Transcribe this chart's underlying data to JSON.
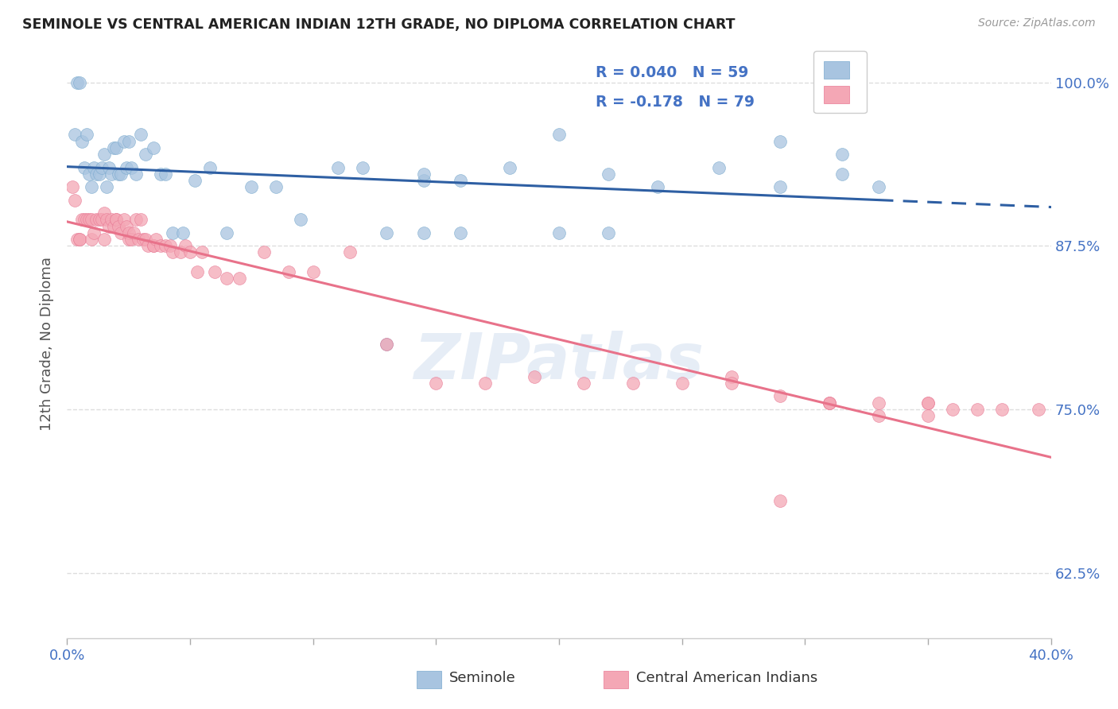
{
  "title": "SEMINOLE VS CENTRAL AMERICAN INDIAN 12TH GRADE, NO DIPLOMA CORRELATION CHART",
  "source": "Source: ZipAtlas.com",
  "ylabel": "12th Grade, No Diploma",
  "xlim": [
    0.0,
    0.4
  ],
  "ylim": [
    0.575,
    1.025
  ],
  "ytick_positions": [
    0.625,
    0.75,
    0.875,
    1.0
  ],
  "ytick_labels": [
    "62.5%",
    "75.0%",
    "87.5%",
    "100.0%"
  ],
  "xtick_positions": [
    0.0,
    0.05,
    0.1,
    0.15,
    0.2,
    0.25,
    0.3,
    0.35,
    0.4
  ],
  "xtick_labels": [
    "0.0%",
    "",
    "",
    "",
    "",
    "",
    "",
    "",
    "40.0%"
  ],
  "seminole_R": 0.04,
  "seminole_N": 59,
  "central_R": -0.178,
  "central_N": 79,
  "legend_label1": "Seminole",
  "legend_label2": "Central American Indians",
  "blue_color": "#A8C4E0",
  "pink_color": "#F4A7B5",
  "blue_edge_color": "#7AAACE",
  "pink_edge_color": "#E87A95",
  "blue_line_color": "#2E5FA3",
  "pink_line_color": "#E8728A",
  "seminole_x": [
    0.003,
    0.004,
    0.005,
    0.006,
    0.007,
    0.008,
    0.009,
    0.01,
    0.011,
    0.012,
    0.013,
    0.014,
    0.015,
    0.016,
    0.017,
    0.018,
    0.019,
    0.02,
    0.021,
    0.022,
    0.023,
    0.024,
    0.025,
    0.026,
    0.028,
    0.03,
    0.032,
    0.035,
    0.038,
    0.04,
    0.043,
    0.047,
    0.052,
    0.058,
    0.065,
    0.075,
    0.085,
    0.095,
    0.11,
    0.12,
    0.13,
    0.145,
    0.16,
    0.18,
    0.2,
    0.22,
    0.24,
    0.265,
    0.29,
    0.315,
    0.13,
    0.145,
    0.16,
    0.2,
    0.22,
    0.145,
    0.29,
    0.315,
    0.33
  ],
  "seminole_y": [
    0.96,
    1.0,
    1.0,
    0.955,
    0.935,
    0.96,
    0.93,
    0.92,
    0.935,
    0.93,
    0.93,
    0.935,
    0.945,
    0.92,
    0.935,
    0.93,
    0.95,
    0.95,
    0.93,
    0.93,
    0.955,
    0.935,
    0.955,
    0.935,
    0.93,
    0.96,
    0.945,
    0.95,
    0.93,
    0.93,
    0.885,
    0.885,
    0.925,
    0.935,
    0.885,
    0.92,
    0.92,
    0.895,
    0.935,
    0.935,
    0.8,
    0.925,
    0.925,
    0.935,
    0.96,
    0.93,
    0.92,
    0.935,
    0.955,
    0.93,
    0.885,
    0.885,
    0.885,
    0.885,
    0.885,
    0.93,
    0.92,
    0.945,
    0.92
  ],
  "central_x": [
    0.002,
    0.003,
    0.004,
    0.005,
    0.005,
    0.006,
    0.007,
    0.008,
    0.009,
    0.01,
    0.01,
    0.011,
    0.012,
    0.013,
    0.014,
    0.015,
    0.015,
    0.016,
    0.017,
    0.018,
    0.019,
    0.02,
    0.02,
    0.021,
    0.022,
    0.023,
    0.024,
    0.025,
    0.025,
    0.026,
    0.027,
    0.028,
    0.029,
    0.03,
    0.031,
    0.032,
    0.033,
    0.035,
    0.035,
    0.036,
    0.038,
    0.04,
    0.042,
    0.043,
    0.046,
    0.048,
    0.05,
    0.053,
    0.055,
    0.06,
    0.065,
    0.07,
    0.08,
    0.09,
    0.1,
    0.115,
    0.13,
    0.15,
    0.17,
    0.19,
    0.21,
    0.23,
    0.25,
    0.27,
    0.29,
    0.31,
    0.33,
    0.35,
    0.27,
    0.31,
    0.33,
    0.35,
    0.29,
    0.31,
    0.35,
    0.36,
    0.37,
    0.38,
    0.395
  ],
  "central_y": [
    0.92,
    0.91,
    0.88,
    0.88,
    0.88,
    0.895,
    0.895,
    0.895,
    0.895,
    0.895,
    0.88,
    0.885,
    0.895,
    0.895,
    0.895,
    0.9,
    0.88,
    0.895,
    0.89,
    0.895,
    0.89,
    0.895,
    0.895,
    0.89,
    0.885,
    0.895,
    0.89,
    0.88,
    0.885,
    0.88,
    0.885,
    0.895,
    0.88,
    0.895,
    0.88,
    0.88,
    0.875,
    0.875,
    0.875,
    0.88,
    0.875,
    0.875,
    0.875,
    0.87,
    0.87,
    0.875,
    0.87,
    0.855,
    0.87,
    0.855,
    0.85,
    0.85,
    0.87,
    0.855,
    0.855,
    0.87,
    0.8,
    0.77,
    0.77,
    0.775,
    0.77,
    0.77,
    0.77,
    0.775,
    0.68,
    0.755,
    0.755,
    0.755,
    0.77,
    0.755,
    0.745,
    0.755,
    0.76,
    0.755,
    0.745,
    0.75,
    0.75,
    0.75,
    0.75
  ],
  "watermark_text": "ZIPatlas",
  "background_color": "#FFFFFF",
  "grid_color": "#DDDDDD",
  "grid_style": "--"
}
